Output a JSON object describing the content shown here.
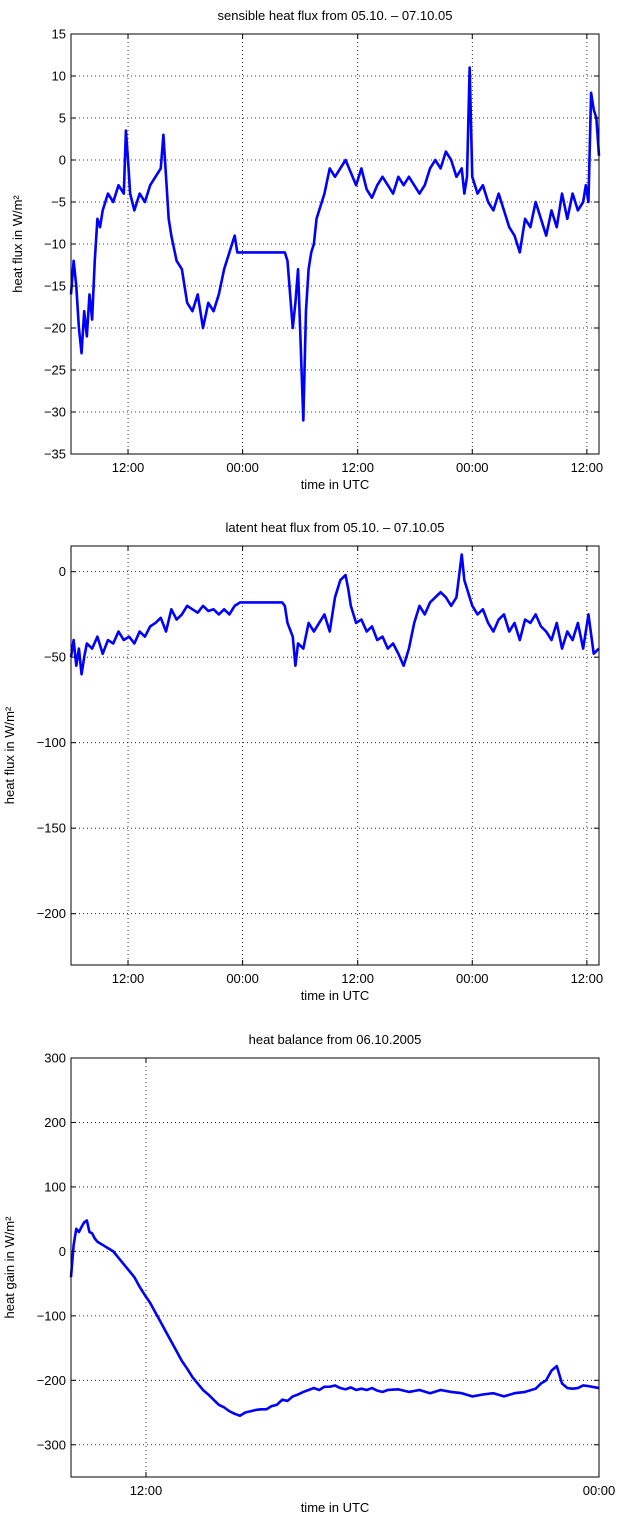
{
  "chart_data": [
    {
      "type": "line",
      "title": "sensible heat flux from 05.10. – 07.10.05",
      "xlabel": "time in UTC",
      "ylabel": "heat flux in W/m²",
      "xlim": [
        0,
        1
      ],
      "ylim": [
        -35,
        15
      ],
      "yticks": [
        -35,
        -30,
        -25,
        -20,
        -15,
        -10,
        -5,
        0,
        5,
        10,
        15
      ],
      "ytick_labels": [
        "−35",
        "−30",
        "−25",
        "−20",
        "−15",
        "−10",
        "−5",
        "0",
        "5",
        "10",
        "15"
      ],
      "xticks": [
        0.108,
        0.325,
        0.543,
        0.76,
        0.977
      ],
      "xtick_labels": [
        "12:00",
        "00:00",
        "12:00",
        "00:00",
        "12:00"
      ],
      "grid": true,
      "line_color": "#0000ff",
      "series": [
        {
          "x": [
            0.0,
            0.005,
            0.01,
            0.015,
            0.02,
            0.025,
            0.03,
            0.035,
            0.04,
            0.045,
            0.05,
            0.055,
            0.06,
            0.07,
            0.08,
            0.09,
            0.1,
            0.104,
            0.108,
            0.112,
            0.116,
            0.12,
            0.13,
            0.14,
            0.15,
            0.16,
            0.17,
            0.175,
            0.18,
            0.185,
            0.19,
            0.2,
            0.21,
            0.22,
            0.23,
            0.24,
            0.25,
            0.26,
            0.27,
            0.28,
            0.29,
            0.3,
            0.31,
            0.315,
            0.32,
            0.325,
            0.33,
            0.34,
            0.35,
            0.36,
            0.37,
            0.38,
            0.39,
            0.4,
            0.405,
            0.41,
            0.415,
            0.42,
            0.425,
            0.43,
            0.435,
            0.44,
            0.445,
            0.45,
            0.455,
            0.46,
            0.465,
            0.47,
            0.475,
            0.48,
            0.49,
            0.5,
            0.51,
            0.52,
            0.53,
            0.54,
            0.55,
            0.56,
            0.57,
            0.58,
            0.59,
            0.6,
            0.61,
            0.62,
            0.63,
            0.64,
            0.65,
            0.66,
            0.67,
            0.68,
            0.69,
            0.7,
            0.71,
            0.72,
            0.73,
            0.74,
            0.745,
            0.75,
            0.755,
            0.76,
            0.77,
            0.78,
            0.79,
            0.8,
            0.81,
            0.82,
            0.83,
            0.84,
            0.85,
            0.86,
            0.87,
            0.88,
            0.89,
            0.9,
            0.91,
            0.92,
            0.93,
            0.94,
            0.95,
            0.96,
            0.97,
            0.975,
            0.98,
            0.985,
            0.99,
            0.995,
            1.0
          ],
          "y": [
            -16,
            -12,
            -15,
            -20,
            -23,
            -18,
            -21,
            -16,
            -19,
            -12,
            -7,
            -8,
            -6,
            -4,
            -5,
            -3,
            -4,
            3.5,
            0,
            -4,
            -5,
            -6,
            -4,
            -5,
            -3,
            -2,
            -1,
            3,
            -2,
            -7,
            -9,
            -12,
            -13,
            -17,
            -18,
            -16,
            -20,
            -17,
            -18,
            -16,
            -13,
            -11,
            -9,
            -11,
            -11,
            -11,
            -11,
            -11,
            -11,
            -11,
            -11,
            -11,
            -11,
            -11,
            -11,
            -12,
            -16,
            -20,
            -17,
            -13,
            -22,
            -31,
            -18,
            -13,
            -11,
            -10,
            -7,
            -6,
            -5,
            -4,
            -1,
            -2,
            -1,
            0,
            -1.5,
            -3,
            -1,
            -3.5,
            -4.5,
            -3,
            -2,
            -3,
            -4,
            -2,
            -3,
            -2,
            -3,
            -4,
            -3,
            -1,
            0,
            -1,
            1,
            0,
            -2,
            -1,
            -4,
            -2,
            11,
            -2,
            -4,
            -3,
            -5,
            -6,
            -4,
            -6,
            -8,
            -9,
            -11,
            -7,
            -8,
            -5,
            -7,
            -9,
            -6,
            -8,
            -4,
            -7,
            -4,
            -6,
            -5,
            -3,
            -5,
            8,
            6,
            5,
            0.5
          ]
        }
      ]
    },
    {
      "type": "line",
      "title": "latent heat flux from 05.10. – 07.10.05",
      "xlabel": "time in UTC",
      "ylabel": "heat flux in W/m²",
      "xlim": [
        0,
        1
      ],
      "ylim": [
        -230,
        15
      ],
      "yticks": [
        -200,
        -150,
        -100,
        -50,
        0
      ],
      "ytick_labels": [
        "−200",
        "−150",
        "−100",
        "−50",
        "0"
      ],
      "xticks": [
        0.108,
        0.325,
        0.543,
        0.76,
        0.977
      ],
      "xtick_labels": [
        "12:00",
        "00:00",
        "12:00",
        "00:00",
        "12:00"
      ],
      "grid": true,
      "line_color": "#0000ff",
      "series": [
        {
          "x": [
            0.0,
            0.005,
            0.01,
            0.015,
            0.02,
            0.025,
            0.03,
            0.04,
            0.05,
            0.06,
            0.07,
            0.08,
            0.09,
            0.1,
            0.11,
            0.12,
            0.13,
            0.14,
            0.15,
            0.16,
            0.17,
            0.18,
            0.19,
            0.2,
            0.21,
            0.22,
            0.23,
            0.24,
            0.25,
            0.26,
            0.27,
            0.28,
            0.29,
            0.3,
            0.31,
            0.32,
            0.325,
            0.33,
            0.34,
            0.35,
            0.36,
            0.37,
            0.38,
            0.39,
            0.4,
            0.405,
            0.41,
            0.42,
            0.425,
            0.43,
            0.44,
            0.45,
            0.46,
            0.47,
            0.48,
            0.49,
            0.5,
            0.51,
            0.52,
            0.525,
            0.53,
            0.54,
            0.55,
            0.56,
            0.57,
            0.58,
            0.59,
            0.6,
            0.61,
            0.62,
            0.63,
            0.64,
            0.65,
            0.66,
            0.67,
            0.68,
            0.69,
            0.7,
            0.71,
            0.72,
            0.73,
            0.74,
            0.745,
            0.75,
            0.76,
            0.77,
            0.78,
            0.79,
            0.8,
            0.81,
            0.82,
            0.83,
            0.84,
            0.85,
            0.86,
            0.87,
            0.88,
            0.89,
            0.9,
            0.91,
            0.92,
            0.93,
            0.94,
            0.95,
            0.96,
            0.97,
            0.98,
            0.99,
            1.0
          ],
          "y": [
            -50,
            -40,
            -55,
            -45,
            -60,
            -50,
            -42,
            -45,
            -38,
            -48,
            -40,
            -42,
            -35,
            -40,
            -38,
            -42,
            -35,
            -38,
            -32,
            -30,
            -27,
            -35,
            -22,
            -28,
            -25,
            -20,
            -22,
            -24,
            -20,
            -23,
            -22,
            -25,
            -22,
            -25,
            -20,
            -18,
            -18,
            -18,
            -18,
            -18,
            -18,
            -18,
            -18,
            -18,
            -18,
            -20,
            -30,
            -38,
            -55,
            -42,
            -45,
            -30,
            -35,
            -30,
            -25,
            -35,
            -15,
            -5,
            -2,
            -10,
            -20,
            -30,
            -28,
            -35,
            -32,
            -40,
            -38,
            -45,
            -42,
            -48,
            -55,
            -45,
            -30,
            -20,
            -25,
            -18,
            -15,
            -12,
            -15,
            -20,
            -15,
            10,
            -5,
            -10,
            -20,
            -25,
            -22,
            -30,
            -35,
            -28,
            -25,
            -35,
            -30,
            -40,
            -28,
            -30,
            -25,
            -32,
            -35,
            -40,
            -30,
            -45,
            -35,
            -40,
            -30,
            -45,
            -25,
            -48,
            -45
          ]
        }
      ]
    },
    {
      "type": "line",
      "title": "heat balance from 06.10.2005",
      "xlabel": "time in UTC",
      "ylabel": "heat gain in W/m²",
      "xlim": [
        0,
        1
      ],
      "ylim": [
        -350,
        300
      ],
      "yticks": [
        -300,
        -200,
        -100,
        0,
        100,
        200,
        300
      ],
      "ytick_labels": [
        "−300",
        "−200",
        "−100",
        "0",
        "100",
        "200",
        "300"
      ],
      "xticks": [
        0.142,
        1.0
      ],
      "xtick_labels": [
        "12:00",
        "00:00"
      ],
      "grid": true,
      "line_color": "#0000ff",
      "series": [
        {
          "x": [
            0.0,
            0.005,
            0.01,
            0.015,
            0.02,
            0.025,
            0.03,
            0.035,
            0.04,
            0.045,
            0.05,
            0.06,
            0.07,
            0.08,
            0.09,
            0.1,
            0.11,
            0.12,
            0.13,
            0.14,
            0.15,
            0.16,
            0.17,
            0.18,
            0.19,
            0.2,
            0.21,
            0.22,
            0.23,
            0.24,
            0.25,
            0.26,
            0.27,
            0.28,
            0.29,
            0.3,
            0.31,
            0.32,
            0.33,
            0.34,
            0.35,
            0.36,
            0.37,
            0.38,
            0.39,
            0.4,
            0.41,
            0.42,
            0.43,
            0.44,
            0.45,
            0.46,
            0.47,
            0.48,
            0.49,
            0.5,
            0.51,
            0.52,
            0.53,
            0.54,
            0.55,
            0.56,
            0.57,
            0.58,
            0.59,
            0.6,
            0.62,
            0.64,
            0.66,
            0.68,
            0.7,
            0.72,
            0.74,
            0.76,
            0.78,
            0.8,
            0.82,
            0.84,
            0.86,
            0.88,
            0.89,
            0.9,
            0.91,
            0.92,
            0.93,
            0.94,
            0.95,
            0.96,
            0.97,
            0.98,
            1.0
          ],
          "y": [
            -40,
            10,
            35,
            30,
            38,
            45,
            48,
            30,
            28,
            20,
            15,
            10,
            5,
            0,
            -10,
            -20,
            -30,
            -40,
            -55,
            -68,
            -80,
            -95,
            -110,
            -125,
            -140,
            -155,
            -170,
            -182,
            -195,
            -205,
            -215,
            -222,
            -230,
            -238,
            -242,
            -248,
            -252,
            -255,
            -250,
            -248,
            -246,
            -245,
            -245,
            -240,
            -238,
            -230,
            -232,
            -225,
            -222,
            -218,
            -215,
            -212,
            -215,
            -210,
            -210,
            -208,
            -212,
            -214,
            -211,
            -215,
            -213,
            -215,
            -212,
            -216,
            -218,
            -215,
            -214,
            -218,
            -215,
            -220,
            -215,
            -218,
            -220,
            -225,
            -222,
            -220,
            -225,
            -220,
            -218,
            -213,
            -205,
            -200,
            -185,
            -178,
            -205,
            -212,
            -213,
            -212,
            -208,
            -209,
            -212
          ]
        }
      ]
    }
  ]
}
